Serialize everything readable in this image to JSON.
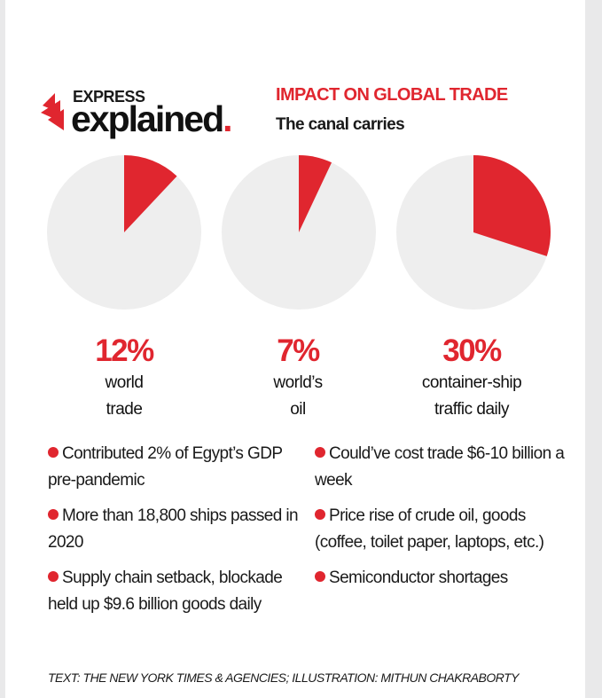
{
  "brand": {
    "top": "EXPRESS",
    "main": "explained",
    "dot": "."
  },
  "header": {
    "title": "IMPACT ON GLOBAL TRADE",
    "subtitle": "The canal carries"
  },
  "colors": {
    "accent": "#e0262f",
    "pie_base": "#eeeeee",
    "text": "#1a1a1a"
  },
  "chart_data": {
    "type": "pie",
    "title": "IMPACT ON GLOBAL TRADE",
    "subtitle": "The canal carries",
    "series": [
      {
        "value": 12,
        "label": "12%",
        "caption": "world trade"
      },
      {
        "value": 7,
        "label": "7%",
        "caption": "world’s oil"
      },
      {
        "value": 30,
        "label": "30%",
        "caption": "container-ship traffic daily"
      }
    ]
  },
  "stats": [
    {
      "pct": "12%",
      "line1": "world",
      "line2": "trade"
    },
    {
      "pct": "7%",
      "line1": "world’s",
      "line2": "oil"
    },
    {
      "pct": "30%",
      "line1": "container-ship",
      "line2": "traffic daily"
    }
  ],
  "bullets_left": [
    "Contributed 2% of Egypt’s GDP pre-pandemic",
    "More than 18,800 ships passed in 2020",
    "Supply chain setback, blockade held up $9.6 billion goods daily"
  ],
  "bullets_right": [
    "Could’ve cost trade $6-10 billion a week",
    "Price rise of crude oil, goods (coffee, toilet paper, laptops, etc.)",
    "Semiconductor shortages"
  ],
  "credit": "TEXT: THE NEW YORK TIMES & AGENCIES; ILLUSTRATION: MITHUN CHAKRABORTY"
}
